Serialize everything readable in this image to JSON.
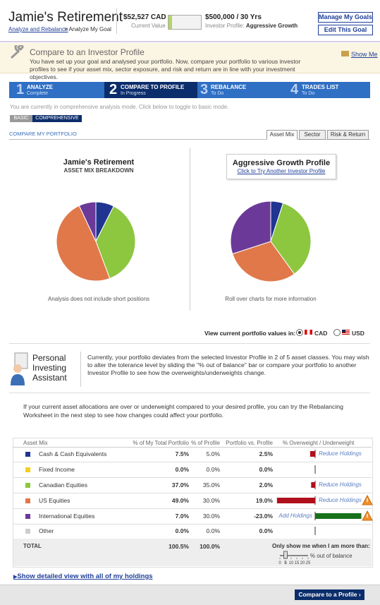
{
  "header": {
    "title": "Jamie's Retirement",
    "breadcrumb_link": "Analyze and Rebalance",
    "breadcrumb_rest": "> Analyze My Goal",
    "current_value": "$52,527 CAD",
    "current_value_label": "Current Value",
    "goal": "$500,000 / 30 Yrs",
    "profile_label": "Investor Profile:",
    "profile_name": "Aggressive Growth",
    "buttons": [
      "Manage My Goals",
      "Edit This Goal"
    ]
  },
  "banner": {
    "title": "Compare to an Investor Profile",
    "text": "You have set up your goal and analysed your portfolio. Now, compare your portfolio to various investor profiles to see if your asset mix, sector exposure, and risk and return are in line with your investment objectives.",
    "show_me": "Show Me"
  },
  "steps": [
    {
      "number": 1,
      "title": "ANALYZE",
      "status": "Complete"
    },
    {
      "number": 2,
      "title": "COMPARE TO PROFILE",
      "status": "In Progress"
    },
    {
      "number": 3,
      "title": "REBALANCE",
      "status": "To Do"
    },
    {
      "number": 4,
      "title": "TRADES LIST",
      "status": "To Do"
    }
  ],
  "mode": {
    "text": "You are currently in comprehensive analysis mode. Click below to toggle to basic mode.",
    "tabs": [
      "BASIC",
      "COMPREHENSIVE"
    ]
  },
  "compare": {
    "title": "COMPARE MY PORTFOLIO",
    "tabs": [
      "Asset Mix",
      "Sector",
      "Risk & Return"
    ]
  },
  "portfolio_chart": {
    "title": "Jamie's Retirement",
    "subtitle": "ASSET MIX BREAKDOWN",
    "note": "Analysis does not include short positions"
  },
  "profile_chart": {
    "title": "Aggressive Growth Profile",
    "link": "Click to Try Another Investor Profile",
    "note": "Roll over charts for more information"
  },
  "currency": {
    "label": "View current portfolio values in:",
    "options": [
      "CAD",
      "USD"
    ]
  },
  "assistant": {
    "title_lines": [
      "Personal",
      "Investing",
      "Assistant"
    ],
    "text": "Currently, your portfolio deviates from the selected Investor Profile in 2 of 5 asset classes. You may wish to alter the tolerance level by sliding the \"% out of balance\" bar or compare your portfolio to another Investor Profile to see how the overweights/underweights change."
  },
  "advice": "If your current asset allocations are over or underweight compared to your desired profile, you can try the Rebalancing Worksheet in the next step to see how changes could affect your portfolio.",
  "table": {
    "columns": [
      "Asset Mix",
      "% of My Total Portfolio",
      "% of Profile",
      "Portfolio vs. Profile",
      "% Overweight / Underweight"
    ],
    "deviation_colors": {
      "over": "#b0101c",
      "under": "#17701a"
    },
    "rows": [
      {
        "name": "Cash & Cash Equivalents",
        "color": "#1f3591",
        "values": [
          7.5,
          5.0,
          2.5
        ],
        "value_labels": [
          "7.5%",
          "5.0%",
          "2.5%"
        ],
        "action": "Reduce Holdings"
      },
      {
        "name": "Fixed Income",
        "color": "#f2cf1d",
        "values": [
          0.0,
          0.0,
          0.0
        ],
        "value_labels": [
          "0.0%",
          "0.0%",
          "0.0%"
        ]
      },
      {
        "name": "Canadian Equities",
        "color": "#8dc63f",
        "values": [
          37.0,
          35.0,
          2.0
        ],
        "value_labels": [
          "37.0%",
          "35.0%",
          "2.0%"
        ],
        "action": "Reduce Holdings"
      },
      {
        "name": "US Equities",
        "color": "#e0784a",
        "values": [
          49.0,
          30.0,
          19.0
        ],
        "value_labels": [
          "49.0%",
          "30.0%",
          "19.0%"
        ],
        "action": "Reduce Holdings"
      },
      {
        "name": "International Equities",
        "color": "#6b3a98",
        "values": [
          7.0,
          30.0,
          -23.0
        ],
        "value_labels": [
          "7.0%",
          "30.0%",
          "-23.0%"
        ],
        "action": "Add Holdings"
      },
      {
        "name": "Other",
        "color": "#cccccc",
        "values": [
          0.0,
          0.0,
          0.0
        ],
        "value_labels": [
          "0.0%",
          "0.0%",
          "0.0%"
        ]
      }
    ],
    "total": {
      "label": "TOTAL",
      "portfolio": "100.5%",
      "profile": "100.0%"
    }
  },
  "filter": {
    "label": "Only show me when I am more than:",
    "ticks": [
      0,
      5,
      10,
      15,
      20,
      25
    ],
    "value": 5,
    "unit": "% out of balance"
  },
  "footer": {
    "link": "Show detailed view with all of my holdings",
    "button": "Compare to a Profile"
  }
}
